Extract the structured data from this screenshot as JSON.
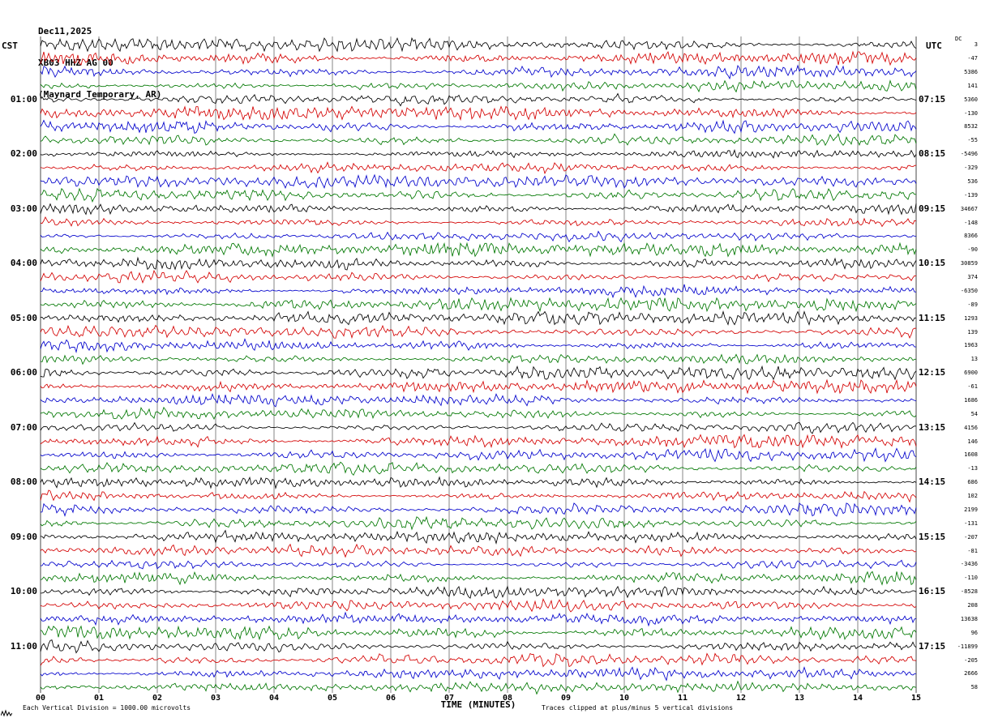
{
  "header": {
    "date": "Dec11,2025",
    "station": "XB03 HHZ AG 00",
    "location": "(Maynard Temporary, AR)"
  },
  "axes": {
    "left_title": "CST",
    "right_title": "UTC",
    "dc_label": "DC"
  },
  "footer": {
    "scale_note": "Each Vertical Division = 1000.00 microvolts",
    "x_axis_title": "TIME (MINUTES)",
    "clip_note": "Traces clipped at plus/minus 5 vertical divisions"
  },
  "chart_data": {
    "type": "line",
    "subtype": "helicorder-seismogram",
    "title": "XB03 HHZ AG 00 (Maynard Temporary, AR) Dec11,2025",
    "xlabel": "TIME (MINUTES)",
    "x_range_minutes": [
      0,
      15
    ],
    "x_ticks": [
      "00",
      "01",
      "02",
      "03",
      "04",
      "05",
      "06",
      "07",
      "08",
      "09",
      "10",
      "11",
      "12",
      "13",
      "14",
      "15"
    ],
    "minutes_per_line": 15,
    "lines_per_hour": 4,
    "total_lines": 48,
    "grid": "vertical minute gridlines only",
    "left_time_labels": [
      "01:00",
      "02:00",
      "03:00",
      "04:00",
      "05:00",
      "06:00",
      "07:00",
      "08:00",
      "09:00",
      "10:00",
      "11:00"
    ],
    "right_time_labels": [
      "07:15",
      "08:15",
      "09:15",
      "10:15",
      "11:15",
      "12:15",
      "13:15",
      "14:15",
      "15:15",
      "16:15",
      "17:15"
    ],
    "trace_colors": [
      "#000000",
      "#d40000",
      "#0000cc",
      "#007700"
    ],
    "dc_values": [
      "3",
      "-47",
      "5386",
      "141",
      "5360",
      "-130",
      "8532",
      "-55",
      "-5496",
      "-329",
      "536",
      "-139",
      "34667",
      "-148",
      "8366",
      "-90",
      "30859",
      "374",
      "-6350",
      "-89",
      "1293",
      "139",
      "1963",
      "13",
      "6900",
      "-61",
      "1686",
      "54",
      "4156",
      "146",
      "1608",
      "-13",
      "686",
      "102",
      "2199",
      "-131",
      "-207",
      "-81",
      "-3436",
      "-110",
      "-8528",
      "208",
      "13638",
      "96",
      "-11899",
      "-205",
      "2666",
      "58"
    ],
    "vertical_division_microvolts": "1000.00",
    "clip_divisions": 5,
    "note": "Continuous background seismic noise; 48 trace lines of 15 minutes each in repeating black/red/blue/green colors. Individual sample values not resolvable at this scale; per-line DC offsets listed in dc_values."
  }
}
